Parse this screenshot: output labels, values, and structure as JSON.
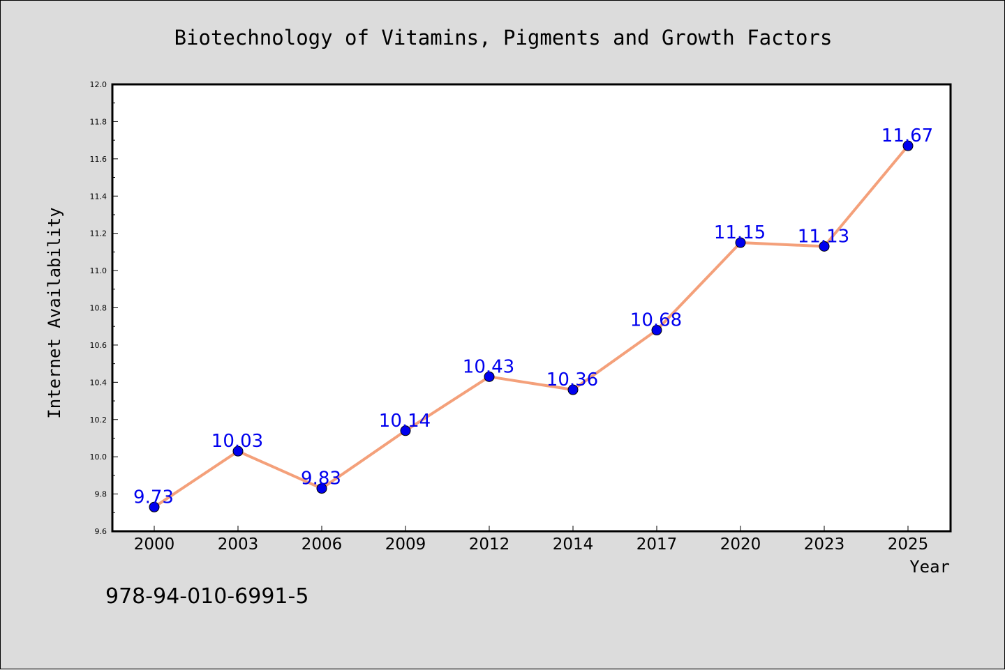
{
  "footer_text": "978-94-010-6991-5",
  "colors": {
    "background": "#dcdcdc",
    "plot_background": "#ffffff",
    "line": "#f4a07a",
    "marker": "#0000ee",
    "data_label": "#0000ee"
  },
  "chart_data": {
    "type": "line",
    "title": "Biotechnology of Vitamins, Pigments and Growth Factors",
    "xlabel": "Year",
    "ylabel": "Internet Availability",
    "categories": [
      "2000",
      "2003",
      "2006",
      "2009",
      "2012",
      "2014",
      "2017",
      "2020",
      "2023",
      "2025"
    ],
    "series": [
      {
        "values": [
          9.73,
          10.03,
          9.83,
          10.14,
          10.43,
          10.36,
          10.68,
          11.15,
          11.13,
          11.67
        ],
        "labels": [
          "9.73",
          "10.03",
          "9.83",
          "10.14",
          "10.43",
          "10.36",
          "10.68",
          "11.15",
          "11.13",
          "11.67"
        ]
      }
    ],
    "ylim": [
      9.6,
      12.0
    ],
    "yticks": [
      "9.6",
      "9.8",
      "10.0",
      "10.2",
      "10.4",
      "10.6",
      "10.8",
      "11.0",
      "11.2",
      "11.4",
      "11.6",
      "11.8",
      "12.0"
    ],
    "grid": false,
    "legend": "none"
  }
}
